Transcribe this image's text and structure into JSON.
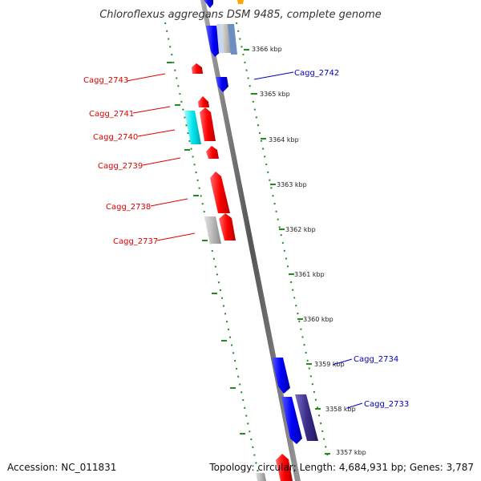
{
  "title": "Chloroflexus aggregans DSM 9485, complete genome",
  "footer": {
    "accession": "Accession: NC_011831",
    "topology": "Topology: circular; Length: 4,684,931 bp; Genes: 3,787"
  },
  "scale_ticks": [
    "3366 kbp",
    "3365 kbp",
    "3364 kbp",
    "3363 kbp",
    "3362 kbp",
    "3361 kbp",
    "3360 kbp",
    "3359 kbp",
    "3358 kbp",
    "3357 kbp"
  ],
  "gene_labels_left": [
    "Cagg_2743",
    "Cagg_2741",
    "Cagg_2740",
    "Cagg_2739",
    "Cagg_2738",
    "Cagg_2737"
  ],
  "gene_labels_right": [
    "Cagg_2742",
    "Cagg_2734",
    "Cagg_2733"
  ],
  "colors": {
    "forward_gene": "#ff0000",
    "reverse_gene": "#0000ff",
    "cyan_gene": "#00e5ee",
    "gray_gene": "#b8b8b8",
    "dark_blue_gene": "#3a2d8a",
    "tick_green": "#228b22",
    "left_label": "#e00000",
    "right_label": "#0000c0"
  }
}
